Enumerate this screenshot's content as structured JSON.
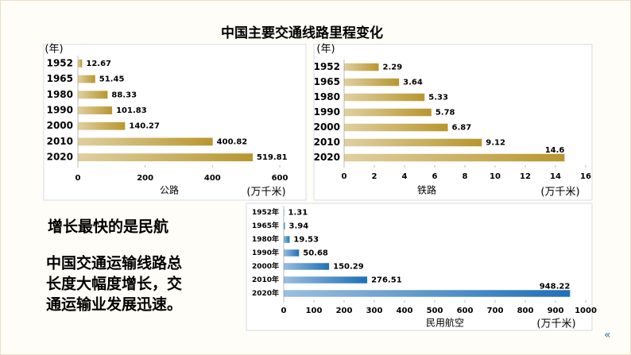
{
  "slide": {
    "title": "中国主要交通线路里程变化",
    "highlight": "增长最快的是民航",
    "conclusion": [
      "中国交通运输线路总",
      "长度大幅度增长，交",
      "通运输业发展迅速。"
    ]
  },
  "chart_data": [
    {
      "type": "bar",
      "orientation": "horizontal",
      "y_label": "(年)",
      "x_label": "公路",
      "unit_label": "(万千米)",
      "categories": [
        "1952",
        "1965",
        "1980",
        "1990",
        "2000",
        "2010",
        "2020"
      ],
      "values": [
        12.67,
        51.45,
        88.33,
        101.83,
        140.27,
        400.82,
        519.81
      ],
      "color": "#b8962e",
      "xlim": [
        0,
        600
      ],
      "xticks": [
        0,
        200,
        400,
        600
      ]
    },
    {
      "type": "bar",
      "orientation": "horizontal",
      "y_label": "(年)",
      "x_label": "铁路",
      "unit_label": "(万千米)",
      "categories": [
        "1952",
        "1965",
        "1980",
        "1990",
        "2000",
        "2010",
        "2020"
      ],
      "values": [
        2.29,
        3.64,
        5.33,
        5.78,
        6.87,
        9.12,
        14.6
      ],
      "color": "#b8962e",
      "xlim": [
        0,
        16
      ],
      "xticks": [
        0,
        2,
        4,
        6,
        8,
        10,
        12,
        14,
        16
      ]
    },
    {
      "type": "bar",
      "orientation": "horizontal",
      "x_label": "民用航空",
      "unit_label": "(万千米)",
      "categories": [
        "1952年",
        "1965年",
        "1980年",
        "1990年",
        "2000年",
        "2010年",
        "2020年"
      ],
      "values": [
        1.31,
        3.94,
        19.53,
        50.68,
        150.29,
        276.51,
        948.22
      ],
      "color": "#1f6fb8",
      "xlim": [
        0,
        1000
      ],
      "xticks": [
        0,
        100,
        200,
        300,
        400,
        500,
        600,
        700,
        800,
        900,
        1000
      ]
    }
  ]
}
